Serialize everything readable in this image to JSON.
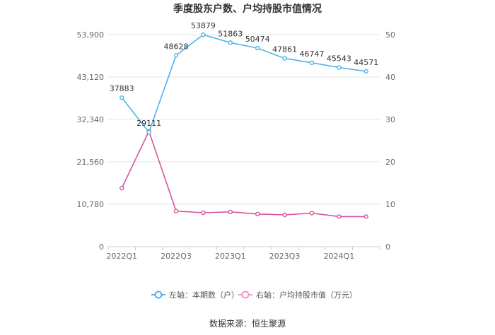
{
  "chart_data": {
    "type": "line",
    "title": "季度股东户数、户均持股市值情况",
    "categories": [
      "2022Q1",
      "2022Q2",
      "2022Q3",
      "2022Q4",
      "2023Q1",
      "2023Q2",
      "2023Q3",
      "2023Q4",
      "2024Q1",
      "2024Q2"
    ],
    "x_tick_labels": [
      "2022Q1",
      "",
      "2022Q3",
      "",
      "2023Q1",
      "",
      "2023Q3",
      "",
      "2024Q1",
      ""
    ],
    "left_axis": {
      "ylim": [
        0,
        53900
      ],
      "ticks": [
        "0",
        "10,780",
        "21,560",
        "32,340",
        "43,120",
        "53,900"
      ]
    },
    "right_axis": {
      "ylim": [
        0,
        50
      ],
      "ticks": [
        "0",
        "10",
        "20",
        "30",
        "40",
        "50"
      ]
    },
    "series": [
      {
        "name": "左轴：本期数（户）",
        "axis": "left",
        "color": "#4fb3e8",
        "values": [
          37883,
          29111,
          48628,
          53879,
          51863,
          50474,
          47861,
          46747,
          45543,
          44571
        ],
        "labels": [
          "37883",
          "29111",
          "48628",
          "53879",
          "51863",
          "50474",
          "47861",
          "46747",
          "45543",
          "44571"
        ]
      },
      {
        "name": "右轴：户均持股市值（万元）",
        "axis": "right",
        "color": "#d6559c",
        "values": [
          13.8,
          27.2,
          8.4,
          8.0,
          8.2,
          7.7,
          7.5,
          7.9,
          7.1,
          7.1
        ]
      }
    ],
    "grid": true,
    "legend": "bottom"
  },
  "source": "数据来源：恒生聚源"
}
